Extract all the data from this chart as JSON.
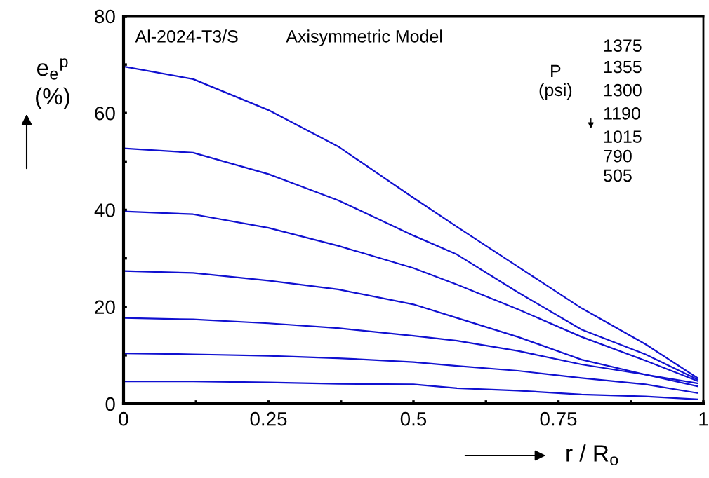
{
  "chart_data": {
    "type": "line",
    "xlabel": "r / R$_{o}$",
    "ylabel": "e$_{e}$$^{p}$\n(%)",
    "annotations": [
      "Al-2024-T3/S",
      "Axisymmetric Model",
      "P\n(psi)",
      "1375",
      "1355",
      "1300",
      "1190",
      "1015",
      "790",
      "505"
    ],
    "x": [
      0,
      0.12,
      0.25,
      0.37,
      0.5,
      0.575,
      0.68,
      0.79,
      0.9,
      0.99
    ],
    "xlim": [
      0,
      1
    ],
    "ylim": [
      0,
      80
    ],
    "xticks": [
      0,
      {
        "value": 0.125,
        "label": null
      },
      0.25,
      {
        "value": 0.375,
        "label": null
      },
      0.5,
      {
        "value": 0.625,
        "label": null
      },
      0.75,
      {
        "value": 0.875,
        "label": null
      },
      1
    ],
    "yticks": [
      0,
      {
        "value": 10,
        "label": null
      },
      20,
      {
        "value": 30,
        "label": null
      },
      40,
      {
        "value": 50,
        "label": null
      },
      60,
      {
        "value": 70,
        "label": null
      },
      80
    ],
    "grid": false,
    "marker": "none",
    "line_style": "solid",
    "series": [
      {
        "color": "#1010d0",
        "values": [
          69.6,
          67.0,
          60.6,
          53.1,
          42.5,
          36.5,
          28.3,
          19.7,
          12.3,
          5.3
        ]
      },
      {
        "color": "#1010d0",
        "values": [
          52.7,
          51.8,
          47.4,
          42.0,
          34.7,
          30.8,
          23.0,
          15.3,
          10.2,
          5.0
        ]
      },
      {
        "color": "#1010d0",
        "values": [
          39.7,
          39.1,
          36.3,
          32.6,
          28.0,
          24.6,
          19.5,
          13.8,
          8.9,
          4.7
        ]
      },
      {
        "color": "#1010d0",
        "values": [
          27.4,
          27.0,
          25.4,
          23.6,
          20.5,
          17.7,
          13.8,
          9.1,
          6.0,
          4.2
        ]
      },
      {
        "color": "#1010d0",
        "values": [
          17.7,
          17.4,
          16.6,
          15.6,
          14.0,
          13.0,
          10.9,
          8.1,
          6.0,
          3.6
        ]
      },
      {
        "color": "#1010d0",
        "values": [
          10.4,
          10.2,
          9.9,
          9.4,
          8.6,
          7.8,
          6.8,
          5.3,
          4.0,
          2.2
        ]
      },
      {
        "color": "#1010d0",
        "values": [
          4.6,
          4.6,
          4.4,
          4.1,
          4.0,
          3.2,
          2.7,
          1.9,
          1.5,
          0.9
        ]
      }
    ]
  }
}
